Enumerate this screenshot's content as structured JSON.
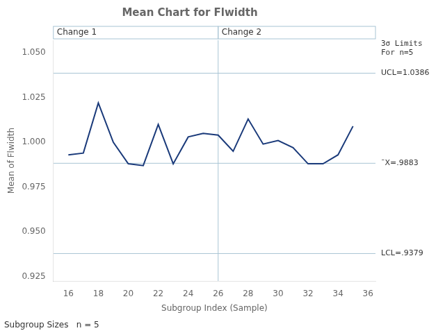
{
  "chart_data": {
    "type": "line",
    "title": "Mean Chart for Flwidth",
    "x_label": "Subgroup Index (Sample)",
    "y_label": "Mean of Flwidth",
    "x": [
      16,
      17,
      18,
      19,
      20,
      21,
      22,
      23,
      24,
      25,
      26,
      27,
      28,
      29,
      30,
      31,
      32,
      33,
      34,
      35
    ],
    "values": [
      0.993,
      0.994,
      1.022,
      1.0,
      0.988,
      0.987,
      1.01,
      0.988,
      1.003,
      1.005,
      1.004,
      0.995,
      1.013,
      0.999,
      1.001,
      0.997,
      0.988,
      0.988,
      0.993,
      1.009
    ],
    "color": "#1a3a7a",
    "marker": "none",
    "xlim": [
      15.0,
      36.5
    ],
    "xticks": [
      16,
      18,
      20,
      22,
      24,
      26,
      28,
      30,
      32,
      34,
      36
    ],
    "ylim": [
      0.9225,
      1.057
    ],
    "yticks": [
      0.925,
      {
        "value": 0.95,
        "label": "0.950"
      },
      0.975,
      {
        "value": 1.0,
        "label": "1.000"
      },
      1.025,
      {
        "value": 1.05,
        "label": "1.050"
      }
    ],
    "grid": false,
    "reference_lines": [
      {
        "value": 1.0386,
        "label": "UCL=1.0386",
        "color": "#a8c4d4"
      },
      {
        "value": 0.9883,
        "label": "¯X=.9883",
        "color": "#a8c4d4"
      },
      {
        "value": 0.9379,
        "label": "LCL=.9379",
        "color": "#a8c4d4"
      }
    ],
    "phases": {
      "split": 26,
      "labels": [
        "Change 1",
        "Change 2"
      ],
      "color": "#a8c4d4"
    },
    "annotations": [
      "3σ Limits\nFor n=5",
      "Subgroup Sizes   n = 5"
    ]
  }
}
